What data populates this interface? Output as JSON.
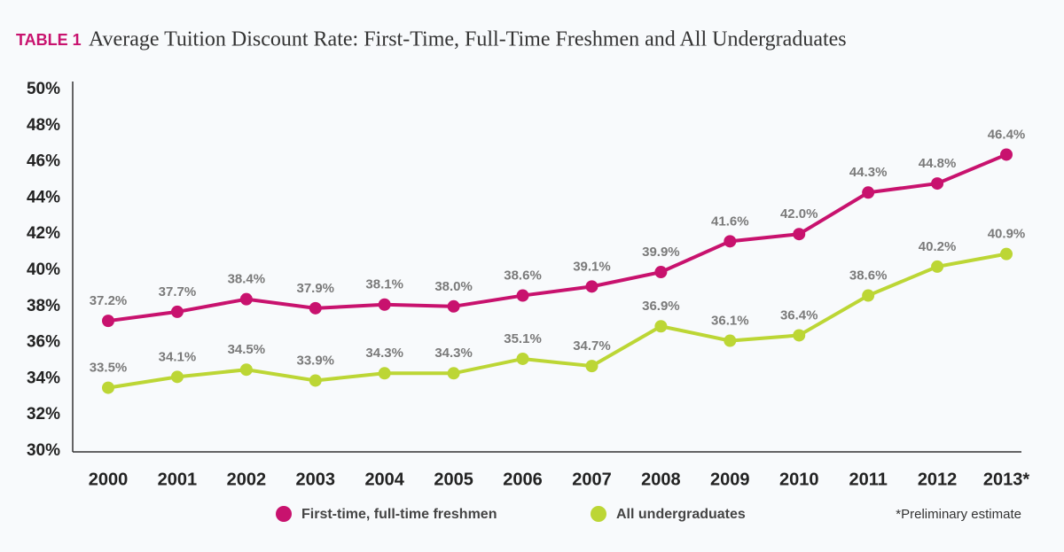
{
  "chart_data": {
    "type": "line",
    "label": "TABLE 1",
    "title": "Average Tuition Discount Rate: First-Time, Full-Time Freshmen and All Undergraduates",
    "note": "*Preliminary estimate",
    "categories": [
      "2000",
      "2001",
      "2002",
      "2003",
      "2004",
      "2005",
      "2006",
      "2007",
      "2008",
      "2009",
      "2010",
      "2011",
      "2012",
      "2013*"
    ],
    "series": [
      {
        "name": "First-time, full-time freshmen",
        "color": "#c8126e",
        "values": [
          37.2,
          37.7,
          38.4,
          37.9,
          38.1,
          38.0,
          38.6,
          39.1,
          39.9,
          41.6,
          42.0,
          44.3,
          44.8,
          46.4
        ],
        "value_labels": [
          "37.2%",
          "37.7%",
          "38.4%",
          "37.9%",
          "38.1%",
          "38.0%",
          "38.6%",
          "39.1%",
          "39.9%",
          "41.6%",
          "42.0%",
          "44.3%",
          "44.8%",
          "46.4%"
        ]
      },
      {
        "name": "All undergraduates",
        "color": "#bcd635",
        "values": [
          33.5,
          34.1,
          34.5,
          33.9,
          34.3,
          34.3,
          35.1,
          34.7,
          36.9,
          36.1,
          36.4,
          38.6,
          40.2,
          40.9
        ],
        "value_labels": [
          "33.5%",
          "34.1%",
          "34.5%",
          "33.9%",
          "34.3%",
          "34.3%",
          "35.1%",
          "34.7%",
          "36.9%",
          "36.1%",
          "36.4%",
          "38.6%",
          "40.2%",
          "40.9%"
        ]
      }
    ],
    "ylim": [
      30,
      50
    ],
    "yticks": [
      {
        "value": 30,
        "label": "30%"
      },
      {
        "value": 32,
        "label": "32%"
      },
      {
        "value": 34,
        "label": "34%"
      },
      {
        "value": 36,
        "label": "36%"
      },
      {
        "value": 38,
        "label": "38%"
      },
      {
        "value": 40,
        "label": "40%"
      },
      {
        "value": 42,
        "label": "42%"
      },
      {
        "value": 44,
        "label": "44%"
      },
      {
        "value": 46,
        "label": "46%"
      },
      {
        "value": 48,
        "label": "48%"
      },
      {
        "value": 50,
        "label": "50%"
      }
    ],
    "grid": false
  }
}
